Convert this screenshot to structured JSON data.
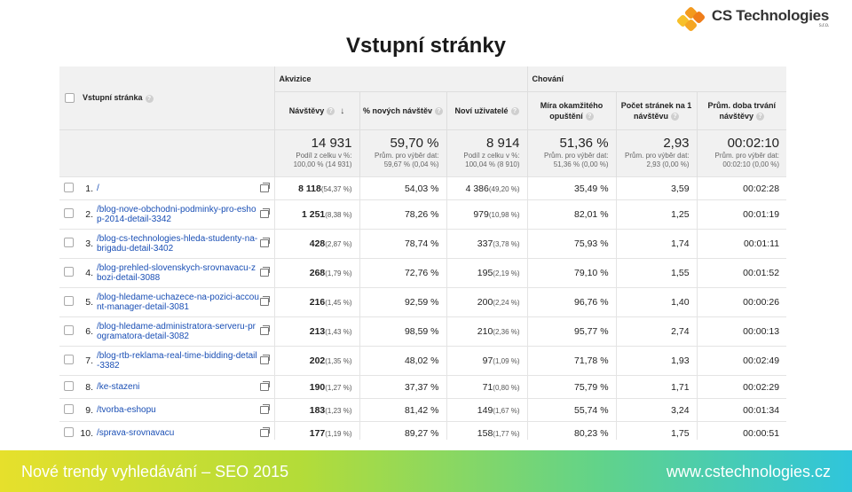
{
  "slide_title": "Vstupní stránky",
  "logo": {
    "name": "CS Technologies",
    "suffix": "s.r.o."
  },
  "table": {
    "col_page_label": "Vstupní stránka",
    "group_acquisition": "Akvizice",
    "group_behavior": "Chování",
    "headers": [
      "Návštěvy",
      "% nových návštěv",
      "Noví uživatelé",
      "Míra okamžitého opuštění",
      "Počet stránek na 1 návštěvu",
      "Prům. doba trvání návštěvy"
    ],
    "totals": [
      {
        "value": "14 931",
        "sub": "Podíl z celku v %: 100,00 % (14 931)"
      },
      {
        "value": "59,70 %",
        "sub": "Prům. pro výběr dat: 59,67 % (0,04 %)"
      },
      {
        "value": "8 914",
        "sub": "Podíl z celku v %: 100,04 % (8 910)"
      },
      {
        "value": "51,36 %",
        "sub": "Prům. pro výběr dat: 51,36 % (0,00 %)"
      },
      {
        "value": "2,93",
        "sub": "Prům. pro výběr dat: 2,93 (0,00 %)"
      },
      {
        "value": "00:02:10",
        "sub": "Prům. pro výběr dat: 00:02:10 (0,00 %)"
      }
    ],
    "rows": [
      {
        "rank": "1.",
        "page": "/",
        "visits": "8 118",
        "visits_pct": "(54,37 %)",
        "new_pct": "54,03 %",
        "new_users": "4 386",
        "new_users_pct": "(49,20 %)",
        "bounce": "35,49 %",
        "pages": "3,59",
        "duration": "00:02:28"
      },
      {
        "rank": "2.",
        "page": "/blog-nove-obchodni-podminky-pro-eshop-2014-detail-3342",
        "visits": "1 251",
        "visits_pct": "(8,38 %)",
        "new_pct": "78,26 %",
        "new_users": "979",
        "new_users_pct": "(10,98 %)",
        "bounce": "82,01 %",
        "pages": "1,25",
        "duration": "00:01:19"
      },
      {
        "rank": "3.",
        "page": "/blog-cs-technologies-hleda-studenty-na-brigadu-detail-3402",
        "visits": "428",
        "visits_pct": "(2,87 %)",
        "new_pct": "78,74 %",
        "new_users": "337",
        "new_users_pct": "(3,78 %)",
        "bounce": "75,93 %",
        "pages": "1,74",
        "duration": "00:01:11"
      },
      {
        "rank": "4.",
        "page": "/blog-prehled-slovenskych-srovnavacu-zbozi-detail-3088",
        "visits": "268",
        "visits_pct": "(1,79 %)",
        "new_pct": "72,76 %",
        "new_users": "195",
        "new_users_pct": "(2,19 %)",
        "bounce": "79,10 %",
        "pages": "1,55",
        "duration": "00:01:52"
      },
      {
        "rank": "5.",
        "page": "/blog-hledame-uchazece-na-pozici-account-manager-detail-3081",
        "visits": "216",
        "visits_pct": "(1,45 %)",
        "new_pct": "92,59 %",
        "new_users": "200",
        "new_users_pct": "(2,24 %)",
        "bounce": "96,76 %",
        "pages": "1,40",
        "duration": "00:00:26"
      },
      {
        "rank": "6.",
        "page": "/blog-hledame-administratora-serveru-programatora-detail-3082",
        "visits": "213",
        "visits_pct": "(1,43 %)",
        "new_pct": "98,59 %",
        "new_users": "210",
        "new_users_pct": "(2,36 %)",
        "bounce": "95,77 %",
        "pages": "2,74",
        "duration": "00:00:13"
      },
      {
        "rank": "7.",
        "page": "/blog-rtb-reklama-real-time-bidding-detail-3382",
        "visits": "202",
        "visits_pct": "(1,35 %)",
        "new_pct": "48,02 %",
        "new_users": "97",
        "new_users_pct": "(1,09 %)",
        "bounce": "71,78 %",
        "pages": "1,93",
        "duration": "00:02:49"
      },
      {
        "rank": "8.",
        "page": "/ke-stazeni",
        "visits": "190",
        "visits_pct": "(1,27 %)",
        "new_pct": "37,37 %",
        "new_users": "71",
        "new_users_pct": "(0,80 %)",
        "bounce": "75,79 %",
        "pages": "1,71",
        "duration": "00:02:29"
      },
      {
        "rank": "9.",
        "page": "/tvorba-eshopu",
        "visits": "183",
        "visits_pct": "(1,23 %)",
        "new_pct": "81,42 %",
        "new_users": "149",
        "new_users_pct": "(1,67 %)",
        "bounce": "55,74 %",
        "pages": "3,24",
        "duration": "00:01:34"
      },
      {
        "rank": "10.",
        "page": "/sprava-srovnavacu",
        "visits": "177",
        "visits_pct": "(1,19 %)",
        "new_pct": "89,27 %",
        "new_users": "158",
        "new_users_pct": "(1,77 %)",
        "bounce": "80,23 %",
        "pages": "1,75",
        "duration": "00:00:51"
      }
    ]
  },
  "footer": {
    "left": "Nové trendy vyhledávání – SEO 2015",
    "right": "www.cstechnologies.cz"
  },
  "colors": {
    "link": "#1a4fb5",
    "logo_orange": "#f39a1e",
    "footer_gradient": [
      "#e6e02c",
      "#b4dc38",
      "#62d389",
      "#2fc5dc"
    ]
  }
}
